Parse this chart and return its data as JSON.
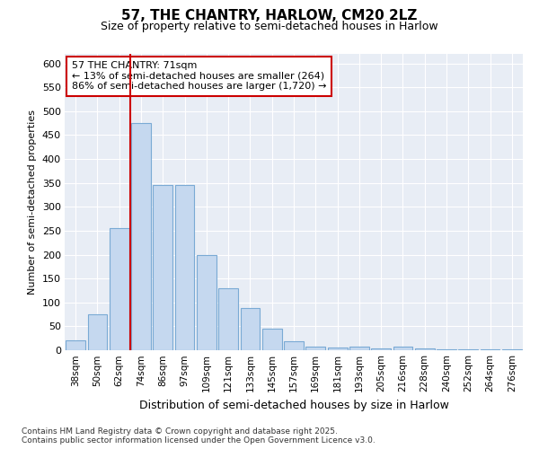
{
  "title_line1": "57, THE CHANTRY, HARLOW, CM20 2LZ",
  "title_line2": "Size of property relative to semi-detached houses in Harlow",
  "xlabel": "Distribution of semi-detached houses by size in Harlow",
  "ylabel": "Number of semi-detached properties",
  "categories": [
    "38sqm",
    "50sqm",
    "62sqm",
    "74sqm",
    "86sqm",
    "97sqm",
    "109sqm",
    "121sqm",
    "133sqm",
    "145sqm",
    "157sqm",
    "169sqm",
    "181sqm",
    "193sqm",
    "205sqm",
    "216sqm",
    "228sqm",
    "240sqm",
    "252sqm",
    "264sqm",
    "276sqm"
  ],
  "bar_values": [
    20,
    75,
    255,
    475,
    345,
    345,
    200,
    130,
    88,
    45,
    18,
    8,
    5,
    8,
    3,
    8,
    3,
    2,
    2,
    2,
    2
  ],
  "bar_color": "#c5d8ef",
  "bar_edge_color": "#7aaad4",
  "ref_line_x": 2.5,
  "ref_line_color": "#cc0000",
  "annotation_text": "57 THE CHANTRY: 71sqm\n← 13% of semi-detached houses are smaller (264)\n86% of semi-detached houses are larger (1,720) →",
  "ylim_max": 620,
  "yticks": [
    0,
    50,
    100,
    150,
    200,
    250,
    300,
    350,
    400,
    450,
    500,
    550,
    600
  ],
  "background_color": "#e8edf5",
  "grid_color": "#ffffff",
  "footer": "Contains HM Land Registry data © Crown copyright and database right 2025.\nContains public sector information licensed under the Open Government Licence v3.0."
}
